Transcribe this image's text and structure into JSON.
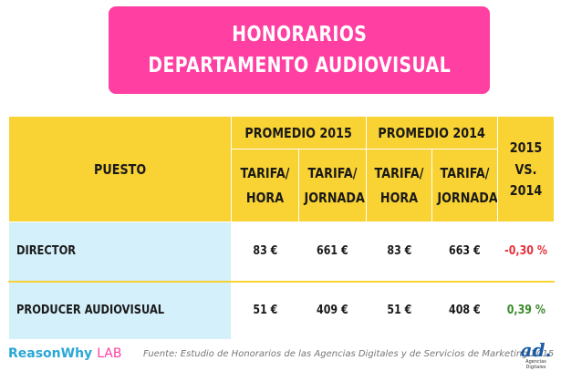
{
  "title": {
    "line1": "HONORARIOS",
    "line2": "DEPARTAMENTO AUDIOVISUAL"
  },
  "table": {
    "puesto_header": "PUESTO",
    "group_2015": "PROMEDIO 2015",
    "group_2014": "PROMEDIO 2014",
    "compare_header": {
      "line1": "2015",
      "line2": "VS.",
      "line3": "2014"
    },
    "sub_headers": {
      "hora": {
        "line1": "TARIFA/",
        "line2": "HORA"
      },
      "jornada": {
        "line1": "TARIFA/",
        "line2": "JORNADA"
      }
    },
    "rows": [
      {
        "puesto": "DIRECTOR",
        "hora_2015": "83 €",
        "jornada_2015": "661 €",
        "hora_2014": "83 €",
        "jornada_2014": "663 €",
        "change": "-0,30 %"
      },
      {
        "puesto": "PRODUCER AUDIOVISUAL",
        "hora_2015": "51 €",
        "jornada_2015": "409 €",
        "hora_2014": "51 €",
        "jornada_2014": "408 €",
        "change": "0,39 %"
      }
    ]
  },
  "footer": {
    "brand": "ReasonWhy",
    "brand_suffix": "LAB",
    "source": "Fuente: Estudio de Honorarios de las Agencias Digitales y de Servicios de Marketing 2015",
    "ad_logo": "ad.",
    "ad_tagline": "Agencias Digitales"
  },
  "colors": {
    "title_bg": "#ff3fa2",
    "header_bg": "#f9d233",
    "label_bg": "#d4f0fb",
    "negative": "#e8303a",
    "positive": "#3d8a2a"
  }
}
